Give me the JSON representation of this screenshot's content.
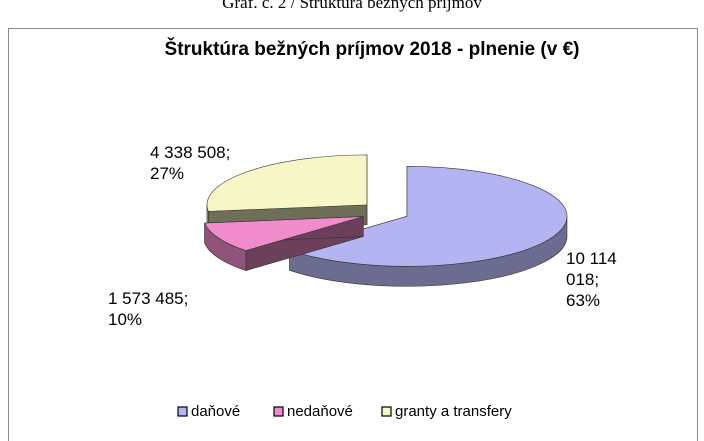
{
  "caption": "Graf. č. 2 / Štruktúra bežných príjmov",
  "chart_data": {
    "type": "pie3d",
    "title": "Štruktúra bežných príjmov 2018 - plnenie (v €)",
    "categories": [
      "daňové",
      "nedaňové",
      "granty a transfery"
    ],
    "values": [
      10114018,
      1573485,
      4338508
    ],
    "value_labels": [
      "10 114 018; 63%",
      "1 573 485; 10%",
      "4 338 508; 27%"
    ],
    "colors": [
      "#b4b4f2",
      "#f08ccb",
      "#f6f6c6"
    ],
    "legend": "bottom"
  }
}
